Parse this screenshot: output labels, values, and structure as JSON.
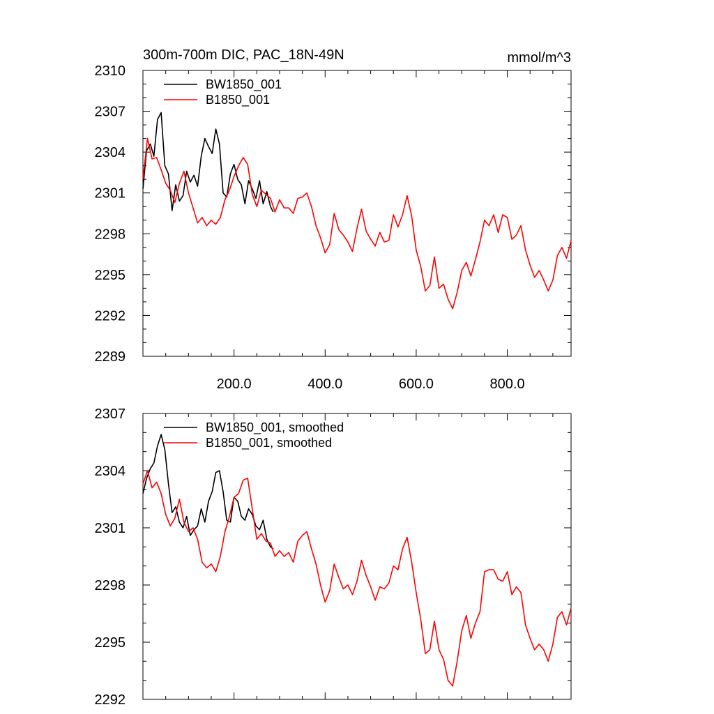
{
  "chart_data": [
    {
      "type": "line",
      "title": "300m-700m DIC, PAC_18N-49N",
      "units": "mmol/m^3",
      "xlim": [
        0,
        940
      ],
      "ylim": [
        2289,
        2310
      ],
      "x_ticks": [
        "200.0",
        "400.0",
        "600.0",
        "800.0"
      ],
      "y_ticks": [
        "2289",
        "2292",
        "2295",
        "2298",
        "2301",
        "2304",
        "2307",
        "2310"
      ],
      "legend": "top-left",
      "series": [
        {
          "name": "BW1850_001",
          "color": "#000000",
          "x": [
            0,
            8,
            16,
            24,
            32,
            40,
            48,
            56,
            64,
            72,
            80,
            88,
            96,
            104,
            112,
            120,
            128,
            136,
            144,
            152,
            160,
            168,
            176,
            184,
            192,
            200,
            208,
            216,
            224,
            232,
            240,
            248,
            256,
            264,
            272,
            280,
            286
          ],
          "y": [
            2301.3,
            2304.1,
            2304.6,
            2303.7,
            2306.4,
            2306.9,
            2303.0,
            2302.4,
            2299.7,
            2301.6,
            2300.4,
            2300.8,
            2302.6,
            2301.8,
            2302.3,
            2301.5,
            2303.7,
            2305.0,
            2304.4,
            2303.9,
            2305.7,
            2304.6,
            2301.0,
            2300.7,
            2302.4,
            2303.1,
            2302.0,
            2301.6,
            2300.2,
            2301.9,
            2301.3,
            2300.6,
            2301.9,
            2300.2,
            2301.1,
            2300.0,
            2299.6
          ]
        },
        {
          "name": "B1850_001",
          "color": "#ff0000",
          "x": [
            0,
            10,
            20,
            30,
            40,
            50,
            60,
            70,
            80,
            90,
            100,
            110,
            120,
            130,
            140,
            150,
            160,
            170,
            180,
            190,
            200,
            210,
            220,
            230,
            240,
            250,
            260,
            270,
            280,
            290,
            300,
            310,
            320,
            330,
            340,
            350,
            360,
            370,
            380,
            390,
            400,
            410,
            420,
            430,
            440,
            450,
            460,
            470,
            480,
            490,
            500,
            510,
            520,
            530,
            540,
            550,
            560,
            570,
            580,
            590,
            600,
            610,
            620,
            630,
            640,
            650,
            660,
            670,
            680,
            690,
            700,
            710,
            720,
            730,
            740,
            750,
            760,
            770,
            780,
            790,
            800,
            810,
            820,
            830,
            840,
            850,
            860,
            870,
            880,
            890,
            900,
            910,
            920,
            930,
            940
          ],
          "y": [
            2302.0,
            2305.0,
            2303.5,
            2303.6,
            2302.7,
            2301.7,
            2301.2,
            2300.3,
            2301.7,
            2302.6,
            2301.0,
            2299.9,
            2298.8,
            2299.2,
            2298.6,
            2299.0,
            2298.7,
            2299.2,
            2300.5,
            2301.2,
            2302.2,
            2303.0,
            2303.6,
            2303.1,
            2300.9,
            2300.0,
            2301.2,
            2300.9,
            2300.6,
            2299.6,
            2300.5,
            2299.9,
            2299.9,
            2299.5,
            2300.6,
            2300.7,
            2301.0,
            2300.0,
            2298.6,
            2297.7,
            2296.6,
            2297.2,
            2299.5,
            2298.3,
            2297.9,
            2297.4,
            2296.7,
            2298.4,
            2299.8,
            2298.2,
            2297.6,
            2297.1,
            2298.1,
            2297.4,
            2297.5,
            2299.4,
            2298.5,
            2299.4,
            2300.8,
            2299.3,
            2296.8,
            2295.6,
            2293.8,
            2294.2,
            2296.3,
            2294.0,
            2294.3,
            2293.2,
            2292.5,
            2293.7,
            2295.3,
            2295.9,
            2294.9,
            2296.1,
            2297.4,
            2299.0,
            2298.6,
            2299.4,
            2298.1,
            2299.4,
            2299.2,
            2297.6,
            2297.9,
            2298.6,
            2296.8,
            2295.7,
            2294.8,
            2295.3,
            2294.6,
            2293.8,
            2294.6,
            2296.4,
            2297.0,
            2296.2,
            2297.5
          ]
        }
      ]
    },
    {
      "type": "line",
      "xlim": [
        0,
        940
      ],
      "ylim": [
        2292,
        2307
      ],
      "y_ticks": [
        "2292",
        "2295",
        "2298",
        "2301",
        "2304",
        "2307"
      ],
      "legend": "top-left",
      "series": [
        {
          "name": "BW1850_001, smoothed",
          "color": "#000000",
          "x": [
            0,
            8,
            16,
            24,
            32,
            40,
            48,
            56,
            64,
            72,
            80,
            88,
            96,
            104,
            112,
            120,
            128,
            136,
            144,
            152,
            160,
            168,
            176,
            184,
            192,
            200,
            208,
            216,
            224,
            232,
            240,
            248,
            256,
            264,
            272,
            280,
            286
          ],
          "y": [
            2302.8,
            2303.6,
            2304.1,
            2304.4,
            2305.3,
            2305.9,
            2305.1,
            2303.3,
            2301.8,
            2302.1,
            2301.3,
            2301.0,
            2301.6,
            2300.6,
            2300.9,
            2301.1,
            2302.0,
            2301.3,
            2302.4,
            2302.9,
            2303.9,
            2304.0,
            2302.9,
            2301.4,
            2301.3,
            2302.6,
            2302.4,
            2301.6,
            2301.4,
            2302.0,
            2301.7,
            2301.1,
            2300.9,
            2301.4,
            2300.4,
            2300.0,
            2299.9
          ]
        },
        {
          "name": "B1850_001, smoothed",
          "color": "#ff0000",
          "x": [
            0,
            10,
            20,
            30,
            40,
            50,
            60,
            70,
            80,
            90,
            100,
            110,
            120,
            130,
            140,
            150,
            160,
            170,
            180,
            190,
            200,
            210,
            220,
            230,
            240,
            250,
            260,
            270,
            280,
            290,
            300,
            310,
            320,
            330,
            340,
            350,
            360,
            370,
            380,
            390,
            400,
            410,
            420,
            430,
            440,
            450,
            460,
            470,
            480,
            490,
            500,
            510,
            520,
            530,
            540,
            550,
            560,
            570,
            580,
            590,
            600,
            610,
            620,
            630,
            640,
            650,
            660,
            670,
            680,
            690,
            700,
            710,
            720,
            730,
            740,
            750,
            760,
            770,
            780,
            790,
            800,
            810,
            820,
            830,
            840,
            850,
            860,
            870,
            880,
            890,
            900,
            910,
            920,
            930,
            940
          ],
          "y": [
            2303.3,
            2304.0,
            2303.1,
            2303.4,
            2302.8,
            2301.7,
            2301.1,
            2301.5,
            2302.5,
            2301.3,
            2300.8,
            2301.0,
            2300.4,
            2299.2,
            2298.9,
            2299.1,
            2298.7,
            2299.5,
            2300.8,
            2301.6,
            2302.6,
            2302.8,
            2303.5,
            2303.6,
            2302.0,
            2300.4,
            2300.7,
            2300.3,
            2300.2,
            2299.5,
            2299.8,
            2299.5,
            2299.7,
            2299.2,
            2300.3,
            2300.6,
            2300.8,
            2299.9,
            2299.1,
            2298.0,
            2297.1,
            2297.7,
            2299.1,
            2298.4,
            2297.8,
            2298.0,
            2297.5,
            2298.2,
            2299.3,
            2298.5,
            2297.9,
            2297.2,
            2297.9,
            2297.8,
            2298.1,
            2299.0,
            2298.8,
            2299.9,
            2300.5,
            2299.2,
            2297.6,
            2296.2,
            2294.4,
            2294.6,
            2296.1,
            2294.6,
            2294.1,
            2293.0,
            2292.7,
            2294.0,
            2295.6,
            2296.4,
            2295.2,
            2296.0,
            2296.6,
            2298.7,
            2298.8,
            2298.8,
            2298.3,
            2298.2,
            2298.7,
            2297.5,
            2297.9,
            2297.6,
            2295.9,
            2295.2,
            2294.6,
            2294.9,
            2294.6,
            2294.0,
            2294.9,
            2296.3,
            2296.6,
            2295.9,
            2296.8
          ]
        }
      ]
    }
  ]
}
